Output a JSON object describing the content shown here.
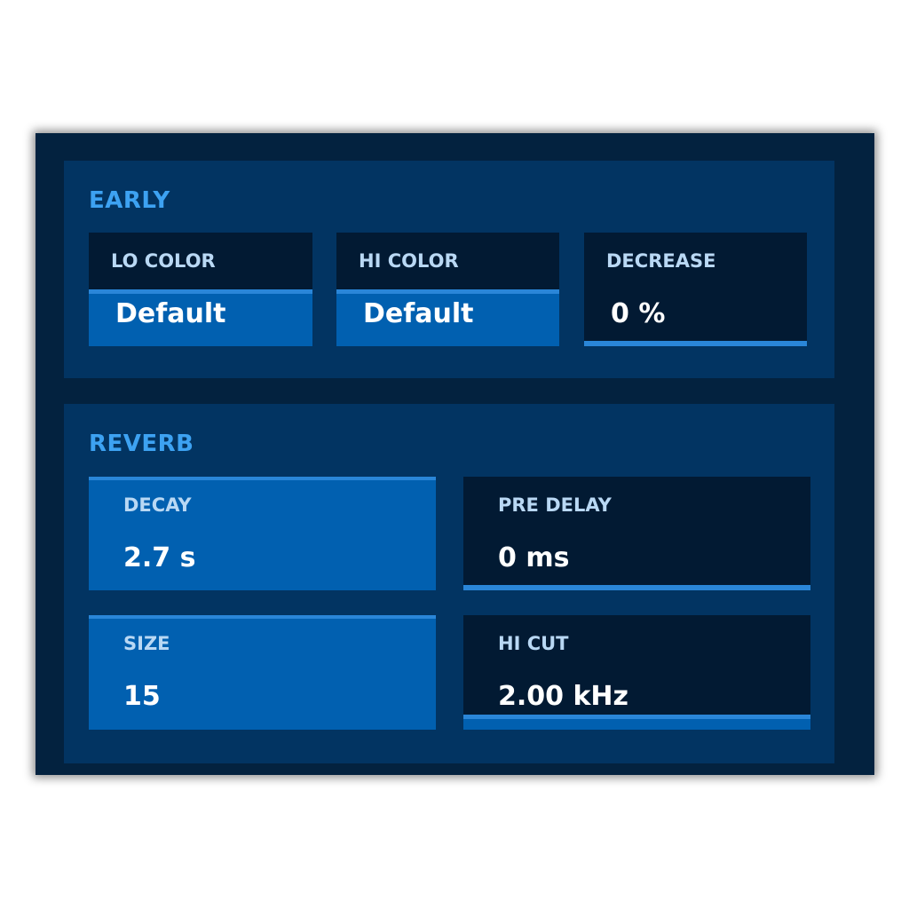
{
  "colors": {
    "panel": "#03223f",
    "section": "#023462",
    "card": "#021a33",
    "fill": "#0160b0",
    "accent_line": "#2a86d8",
    "title": "#3da2f2"
  },
  "early": {
    "title": "EARLY",
    "controls": [
      {
        "label": "LO COLOR",
        "value": "Default",
        "fill": 0.5
      },
      {
        "label": "HI COLOR",
        "value": "Default",
        "fill": 0.5
      },
      {
        "label": "DECREASE",
        "value": "0 %",
        "fill": 0
      }
    ]
  },
  "reverb": {
    "title": "REVERB",
    "controls": [
      {
        "label": "DECAY",
        "value": "2.7 s",
        "fill": 1.0
      },
      {
        "label": "PRE DELAY",
        "value": "0 ms",
        "fill": 0
      },
      {
        "label": "SIZE",
        "value": "15",
        "fill": 1.0
      },
      {
        "label": "HI CUT",
        "value": "2.00 kHz",
        "fill": 0.13
      }
    ]
  }
}
